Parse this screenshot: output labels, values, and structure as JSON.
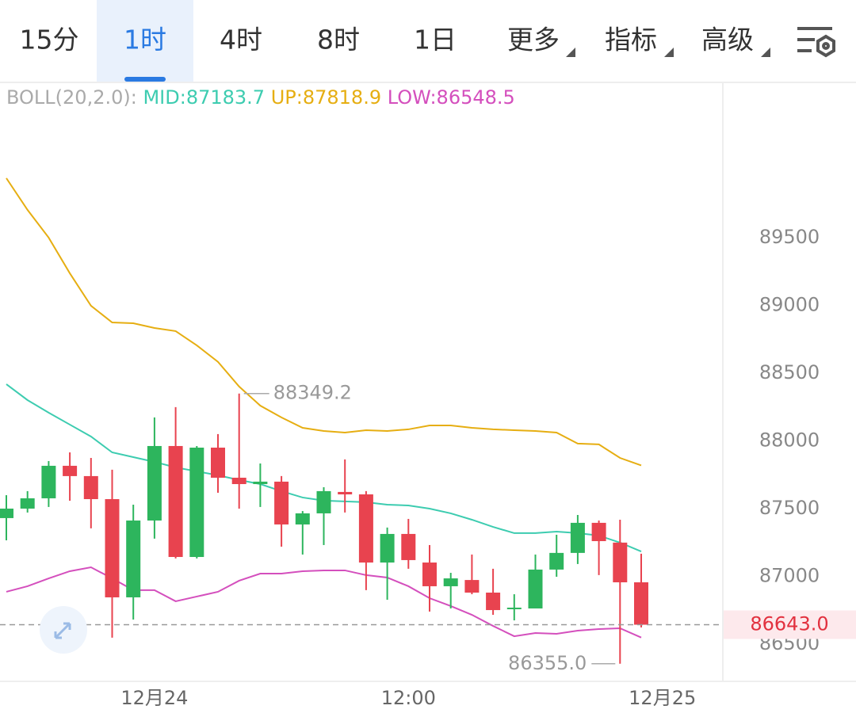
{
  "tabs": [
    "15分",
    "1时",
    "4时",
    "8时",
    "1日",
    "更多",
    "指标",
    "高级"
  ],
  "chart_data": {
    "type": "candlestick",
    "indicator_label": "BOLL(20,2.0):",
    "categories": [
      null,
      null,
      null,
      null,
      null,
      null,
      null,
      "12月24",
      null,
      null,
      null,
      null,
      null,
      null,
      null,
      null,
      null,
      null,
      null,
      "12:00",
      null,
      null,
      null,
      null,
      null,
      null,
      null,
      null,
      null,
      null,
      null,
      "12月25"
    ],
    "open": [
      87430,
      87500,
      87576,
      87816,
      87740,
      87570,
      86845,
      87412,
      87962,
      87143,
      87950,
      87728,
      87681,
      87699,
      87383,
      87465,
      87623,
      87605,
      87102,
      87313,
      87102,
      86927,
      86973,
      86880,
      86763,
      86763,
      87050,
      87173,
      87395,
      87249,
      86956,
      null
    ],
    "high": [
      87599,
      87629,
      87851,
      87915,
      87874,
      87787,
      87529,
      88173,
      88249,
      87962,
      88050,
      88349.2,
      87833,
      87740,
      87482,
      87658,
      87863,
      87629,
      87360,
      87424,
      87231,
      87026,
      87161,
      87056,
      86868,
      87161,
      87307,
      87453,
      87412,
      87418,
      87167,
      null
    ],
    "low": [
      87266,
      87471,
      87512,
      87558,
      87354,
      86547,
      86681,
      87278,
      87132,
      87132,
      87617,
      87500,
      87512,
      87219,
      87161,
      87231,
      87471,
      86898,
      86827,
      87056,
      86740,
      86763,
      86868,
      86716,
      86675,
      86763,
      86997,
      87091,
      87009,
      86355,
      86623,
      null
    ],
    "close": [
      87500,
      87576,
      87816,
      87740,
      87570,
      86845,
      87412,
      87962,
      87143,
      87950,
      87728,
      87681,
      87699,
      87383,
      87465,
      87629,
      87605,
      87102,
      87313,
      87120,
      86927,
      86985,
      86880,
      86751,
      86769,
      87050,
      87173,
      87395,
      87260,
      86956,
      86643.0,
      null
    ],
    "up_color": "#2db55d",
    "down_color": "#e8434f",
    "series": [
      {
        "name": "MID:87183.7",
        "color": "#3dccb0",
        "values": [
          88418,
          88301,
          88208,
          88120,
          88032,
          87915,
          87880,
          87845,
          87804,
          87775,
          87746,
          87711,
          87681,
          87629,
          87582,
          87559,
          87553,
          87547,
          87529,
          87523,
          87500,
          87465,
          87418,
          87365,
          87319,
          87319,
          87330,
          87319,
          87301,
          87249,
          87183.7,
          null
        ]
      },
      {
        "name": "UP:87818.9",
        "color": "#e6ae12",
        "values": [
          89939,
          89705,
          89500,
          89237,
          88997,
          88874,
          88868,
          88833,
          88810,
          88705,
          88583,
          88401,
          88260,
          88173,
          88096,
          88073,
          88061,
          88079,
          88073,
          88085,
          88114,
          88114,
          88096,
          88085,
          88079,
          88073,
          88061,
          87980,
          87974,
          87874,
          87818.9,
          null
        ]
      },
      {
        "name": "LOW:86548.5",
        "color": "#d44fbd",
        "values": [
          86886,
          86927,
          86985,
          87038,
          87067,
          86985,
          86898,
          86898,
          86816,
          86851,
          86886,
          86968,
          87020,
          87020,
          87038,
          87044,
          87044,
          87009,
          86991,
          86927,
          86839,
          86781,
          86716,
          86634,
          86558,
          86582,
          86576,
          86599,
          86611,
          86617,
          86548.5,
          null
        ]
      }
    ],
    "ylim": [
      86225,
      90640
    ],
    "yticks": [
      86500,
      87000,
      87500,
      88000,
      88500,
      89000,
      89500
    ],
    "grid": false,
    "max_label": "88349.2",
    "min_label": "86355.0",
    "last_price": {
      "value": 86643.0,
      "label": "86643.0"
    }
  }
}
